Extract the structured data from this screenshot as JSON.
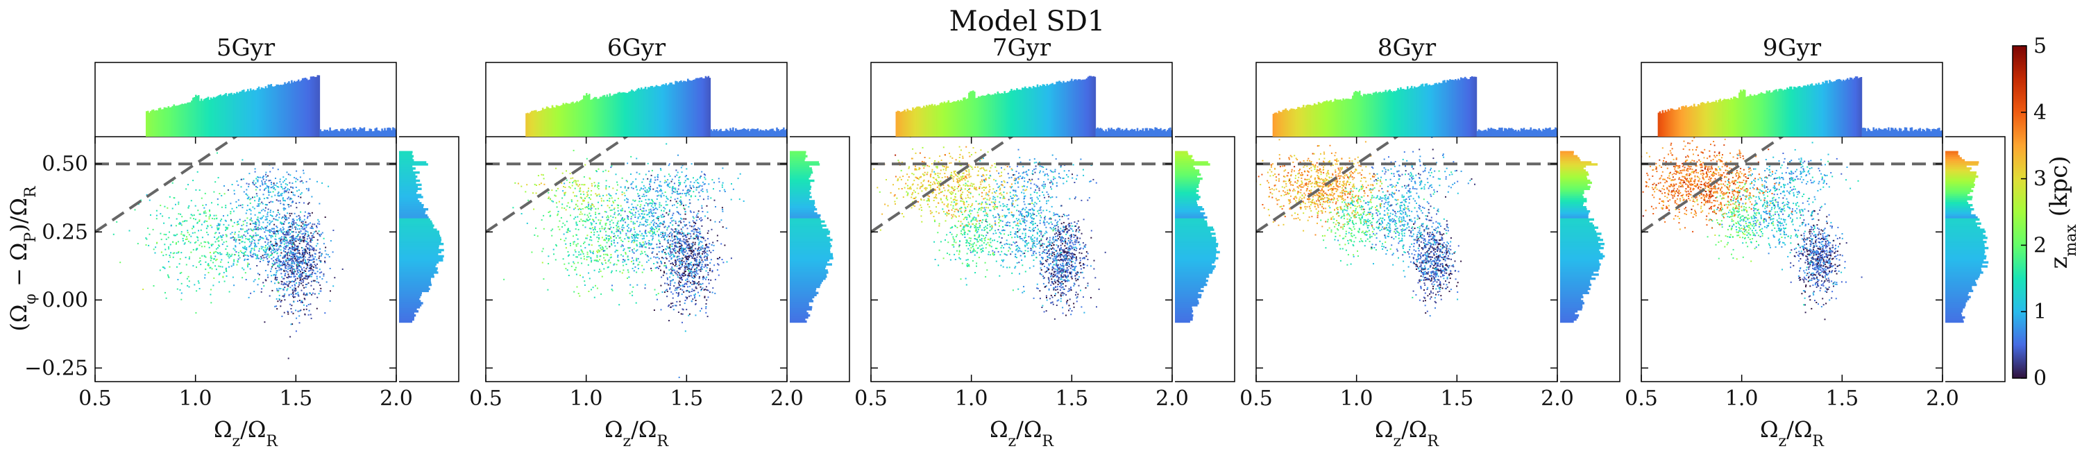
{
  "figure": {
    "title": "Model SD1",
    "colorbar": {
      "label": "z_max (kpc)",
      "label_main": "z",
      "label_sub": "max",
      "label_unit": " (kpc)",
      "min": 0,
      "max": 5,
      "ticks": [
        "0",
        "1",
        "2",
        "3",
        "4",
        "5"
      ],
      "colormap": "turbo"
    }
  },
  "chart_data": {
    "type": "scatter",
    "title": "Model SD1",
    "xlabel": "Ωz/ΩR",
    "ylabel": "(Ωφ − ΩP)/ΩR",
    "xlim": [
      0.5,
      2.0
    ],
    "ylim": [
      -0.3,
      0.6
    ],
    "xticks": [
      "0.5",
      "1.0",
      "1.5",
      "2.0"
    ],
    "yticks": [
      "−0.25",
      "0.00",
      "0.25",
      "0.50"
    ],
    "reference_lines": [
      {
        "kind": "horizontal",
        "y": 0.5,
        "style": "dashed"
      },
      {
        "kind": "line",
        "from": [
          0.5,
          0.25
        ],
        "to": [
          1.5,
          0.75
        ],
        "style": "dashed"
      }
    ],
    "panels": [
      {
        "label": "5Gyr",
        "age_gyr": 5,
        "x_range": [
          0.75,
          1.62
        ],
        "zmax_left": 2.4,
        "zmax_right": 0.4,
        "band_high_frac": 0.1,
        "clumps": [
          {
            "x": 1.5,
            "y": 0.15,
            "sx": 0.07,
            "sy": 0.09,
            "n": 900,
            "z": 0.4
          },
          {
            "x": 1.35,
            "y": 0.25,
            "sx": 0.1,
            "sy": 0.08,
            "n": 500,
            "z": 0.9
          },
          {
            "x": 1.05,
            "y": 0.22,
            "sx": 0.15,
            "sy": 0.09,
            "n": 450,
            "z": 1.6
          },
          {
            "x": 1.4,
            "y": 0.42,
            "sx": 0.1,
            "sy": 0.03,
            "n": 150,
            "z": 0.8
          }
        ]
      },
      {
        "label": "6Gyr",
        "age_gyr": 6,
        "x_range": [
          0.7,
          1.62
        ],
        "zmax_left": 3.2,
        "zmax_right": 0.4,
        "band_high_frac": 0.2,
        "clumps": [
          {
            "x": 1.5,
            "y": 0.15,
            "sx": 0.07,
            "sy": 0.09,
            "n": 800,
            "z": 0.4
          },
          {
            "x": 1.3,
            "y": 0.27,
            "sx": 0.11,
            "sy": 0.08,
            "n": 500,
            "z": 1.0
          },
          {
            "x": 1.05,
            "y": 0.25,
            "sx": 0.15,
            "sy": 0.1,
            "n": 500,
            "z": 1.8
          },
          {
            "x": 1.45,
            "y": 0.42,
            "sx": 0.12,
            "sy": 0.03,
            "n": 200,
            "z": 0.9
          },
          {
            "x": 0.95,
            "y": 0.4,
            "sx": 0.12,
            "sy": 0.04,
            "n": 120,
            "z": 2.7
          }
        ]
      },
      {
        "label": "7Gyr",
        "age_gyr": 7,
        "x_range": [
          0.62,
          1.62
        ],
        "zmax_left": 3.5,
        "zmax_right": 0.4,
        "band_high_frac": 0.3,
        "clumps": [
          {
            "x": 1.45,
            "y": 0.15,
            "sx": 0.06,
            "sy": 0.08,
            "n": 700,
            "z": 0.4
          },
          {
            "x": 1.25,
            "y": 0.28,
            "sx": 0.1,
            "sy": 0.08,
            "n": 450,
            "z": 1.0
          },
          {
            "x": 1.0,
            "y": 0.25,
            "sx": 0.08,
            "sy": 0.07,
            "n": 300,
            "z": 1.7
          },
          {
            "x": 0.88,
            "y": 0.42,
            "sx": 0.15,
            "sy": 0.06,
            "n": 600,
            "z": 3.1
          },
          {
            "x": 1.35,
            "y": 0.45,
            "sx": 0.12,
            "sy": 0.04,
            "n": 150,
            "z": 0.8
          }
        ]
      },
      {
        "label": "8Gyr",
        "age_gyr": 8,
        "x_range": [
          0.58,
          1.6
        ],
        "zmax_left": 3.6,
        "zmax_right": 0.4,
        "band_high_frac": 0.45,
        "clumps": [
          {
            "x": 1.38,
            "y": 0.15,
            "sx": 0.05,
            "sy": 0.07,
            "n": 600,
            "z": 0.4
          },
          {
            "x": 1.2,
            "y": 0.3,
            "sx": 0.09,
            "sy": 0.07,
            "n": 400,
            "z": 1.0
          },
          {
            "x": 0.98,
            "y": 0.3,
            "sx": 0.07,
            "sy": 0.06,
            "n": 250,
            "z": 1.8
          },
          {
            "x": 0.82,
            "y": 0.42,
            "sx": 0.14,
            "sy": 0.06,
            "n": 800,
            "z": 3.4
          },
          {
            "x": 1.3,
            "y": 0.46,
            "sx": 0.12,
            "sy": 0.04,
            "n": 150,
            "z": 0.8
          }
        ]
      },
      {
        "label": "9Gyr",
        "age_gyr": 9,
        "x_range": [
          0.58,
          1.6
        ],
        "zmax_left": 4.2,
        "zmax_right": 0.4,
        "band_high_frac": 0.5,
        "clumps": [
          {
            "x": 1.38,
            "y": 0.15,
            "sx": 0.05,
            "sy": 0.07,
            "n": 600,
            "z": 0.4
          },
          {
            "x": 1.18,
            "y": 0.32,
            "sx": 0.09,
            "sy": 0.07,
            "n": 400,
            "z": 1.1
          },
          {
            "x": 0.98,
            "y": 0.3,
            "sx": 0.06,
            "sy": 0.06,
            "n": 220,
            "z": 1.9
          },
          {
            "x": 0.8,
            "y": 0.43,
            "sx": 0.14,
            "sy": 0.06,
            "n": 900,
            "z": 3.8
          },
          {
            "x": 1.25,
            "y": 0.47,
            "sx": 0.12,
            "sy": 0.04,
            "n": 150,
            "z": 0.9
          }
        ]
      }
    ]
  }
}
